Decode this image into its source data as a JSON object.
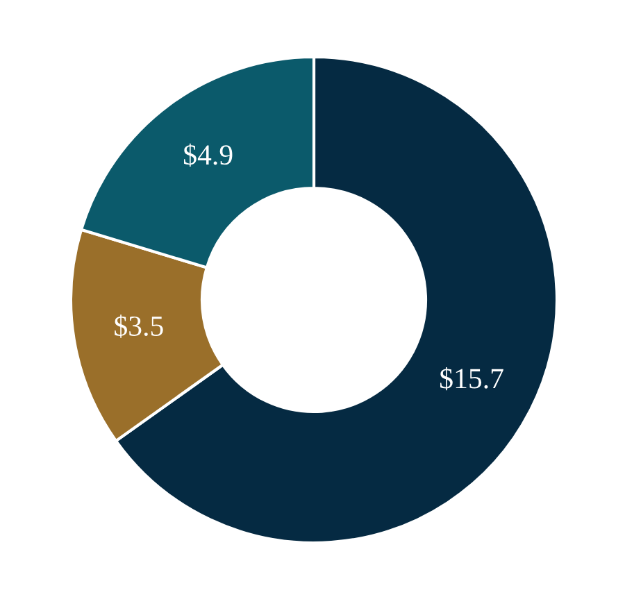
{
  "chart_data": {
    "type": "donut",
    "categories": [
      null,
      null,
      null
    ],
    "values": [
      15.7,
      3.5,
      4.9
    ],
    "colors": [
      "#052a42",
      "#9a6f2a",
      "#0b5a6b"
    ],
    "value_labels": [
      "$15.7",
      "$3.5",
      "$4.9"
    ]
  }
}
